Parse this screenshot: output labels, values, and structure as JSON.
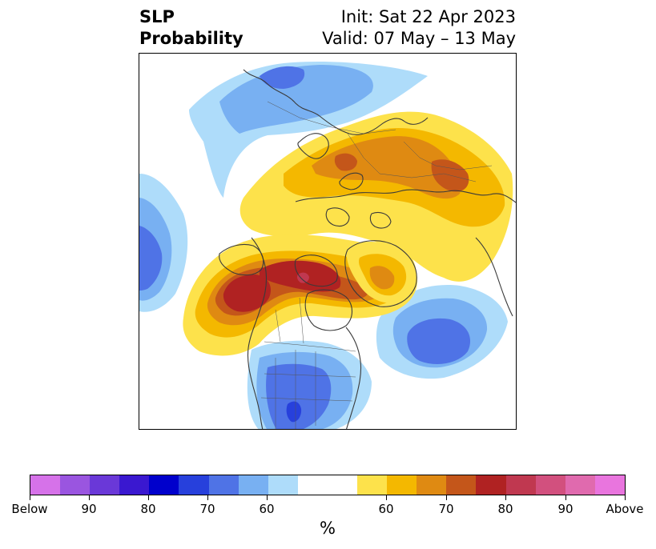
{
  "title": {
    "left_line1": "SLP",
    "left_line2": "Probability",
    "right_line1": "Init: Sat 22 Apr 2023",
    "right_line2": "Valid: 07 May – 13 May"
  },
  "map": {
    "projection": "north-polar-stereographic",
    "background": "#ffffff",
    "coastline_color": "#3a3a3a"
  },
  "colorbar": {
    "unit_label": "%",
    "colors": {
      "below_extend": "#d672e9",
      "below_90_95": "#9a55e0",
      "below_85_90": "#6a38d8",
      "below_80_85": "#3a18d0",
      "below_75_80": "#0000cc",
      "below_70_75": "#2740dc",
      "below_65_70": "#4f73e6",
      "below_60_65": "#78b0f2",
      "below_55_60": "#aedcfa",
      "neutral": "#ffffff",
      "above_55_60": "#fde24b",
      "above_60_65": "#f4b800",
      "above_65_70": "#df8a12",
      "above_70_75": "#c4561a",
      "above_75_80": "#b02222",
      "above_80_85": "#c03850",
      "above_85_90": "#d2507e",
      "above_90_95": "#e06aae",
      "above_extend": "#e975de"
    },
    "tick_labels": [
      "Below",
      "90",
      "80",
      "70",
      "60",
      "60",
      "70",
      "80",
      "90",
      "Above"
    ]
  }
}
